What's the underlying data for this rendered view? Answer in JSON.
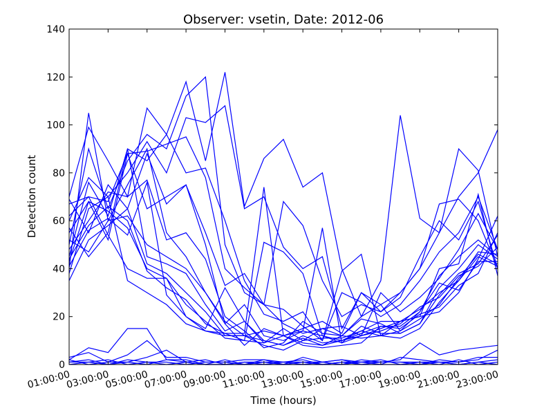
{
  "chart_data": {
    "type": "line",
    "title": "Observer: vsetin, Date: 2012-06",
    "xlabel": "Time (hours)",
    "ylabel": "Detection count",
    "xlim": [
      1,
      23
    ],
    "ylim": [
      0,
      140
    ],
    "grid": false,
    "legend": "none",
    "line_color": "#0000ff",
    "x": [
      1,
      2,
      3,
      4,
      5,
      6,
      7,
      8,
      9,
      10,
      11,
      12,
      13,
      14,
      15,
      16,
      17,
      18,
      19,
      20,
      21,
      22,
      23
    ],
    "x_tick_values": [
      1,
      3,
      5,
      7,
      9,
      11,
      13,
      15,
      17,
      19,
      21,
      23
    ],
    "x_tick_labels": [
      "01:00:00",
      "03:00:00",
      "05:00:00",
      "07:00:00",
      "09:00:00",
      "11:00:00",
      "13:00:00",
      "15:00:00",
      "17:00:00",
      "19:00:00",
      "21:00:00",
      "23:00:00"
    ],
    "y_tick_values": [
      0,
      20,
      40,
      60,
      80,
      100,
      120,
      140
    ],
    "y_tick_labels": [
      "0",
      "20",
      "40",
      "60",
      "80",
      "100",
      "120",
      "140"
    ],
    "series": [
      {
        "values": [
          40,
          105,
          60,
          75,
          90,
          55,
          45,
          30,
          18,
          12,
          8,
          6,
          10,
          15,
          12,
          20,
          25,
          30,
          40,
          55,
          70,
          80,
          98
        ]
      },
      {
        "values": [
          70,
          99,
          85,
          70,
          107,
          96,
          118,
          85,
          122,
          66,
          86,
          94,
          74,
          80,
          40,
          20,
          35,
          104,
          61,
          55,
          90,
          81,
          45
        ]
      },
      {
        "values": [
          50,
          90,
          65,
          85,
          96,
          90,
          112,
          120,
          50,
          30,
          25,
          68,
          58,
          35,
          20,
          25,
          22,
          28,
          45,
          60,
          52,
          68,
          40
        ]
      },
      {
        "values": [
          60,
          78,
          70,
          80,
          93,
          80,
          103,
          101,
          108,
          65,
          70,
          49,
          40,
          45,
          15,
          30,
          22,
          30,
          40,
          67,
          69,
          60,
          40
        ]
      },
      {
        "values": [
          45,
          76,
          62,
          90,
          85,
          96,
          80,
          82,
          60,
          35,
          21,
          18,
          22,
          10,
          39,
          46,
          12,
          18,
          20,
          40,
          42,
          71,
          37
        ]
      },
      {
        "values": [
          55,
          68,
          52,
          88,
          89,
          92,
          95,
          78,
          40,
          32,
          25,
          23,
          16,
          10,
          30,
          26,
          20,
          25,
          35,
          47,
          55,
          70,
          48
        ]
      },
      {
        "values": [
          62,
          70,
          68,
          88,
          65,
          70,
          75,
          55,
          33,
          38,
          25,
          17,
          13,
          15,
          16,
          12,
          30,
          22,
          28,
          36,
          48,
          63,
          48
        ]
      },
      {
        "values": [
          69,
          55,
          75,
          65,
          88,
          67,
          75,
          50,
          17,
          8,
          15,
          12,
          15,
          18,
          13,
          30,
          25,
          14,
          22,
          37,
          45,
          52,
          45
        ]
      },
      {
        "values": [
          48,
          60,
          72,
          70,
          77,
          52,
          55,
          44,
          20,
          14,
          7,
          9,
          18,
          13,
          12,
          19,
          17,
          13,
          17,
          32,
          40,
          50,
          44
        ]
      },
      {
        "values": [
          52,
          47,
          60,
          62,
          50,
          45,
          40,
          30,
          17,
          25,
          12,
          10,
          14,
          12,
          9,
          16,
          13,
          13,
          17,
          29,
          38,
          42,
          54
        ]
      },
      {
        "values": [
          57,
          45,
          55,
          90,
          45,
          42,
          38,
          25,
          14,
          18,
          10,
          8,
          12,
          9,
          10,
          14,
          12,
          11,
          15,
          26,
          35,
          45,
          41
        ]
      },
      {
        "values": [
          35,
          52,
          58,
          65,
          42,
          38,
          30,
          22,
          12,
          12,
          14,
          12,
          9,
          8,
          10,
          13,
          16,
          15,
          21,
          24,
          33,
          38,
          55
        ]
      },
      {
        "values": [
          43,
          68,
          64,
          57,
          40,
          36,
          25,
          18,
          11,
          10,
          9,
          15,
          10,
          11,
          11,
          14,
          18,
          18,
          20,
          22,
          30,
          44,
          62
        ]
      },
      {
        "values": [
          67,
          70,
          54,
          40,
          36,
          36,
          20,
          14,
          13,
          10,
          51,
          47,
          38,
          12,
          10,
          12,
          14,
          17,
          24,
          28,
          37,
          41,
          49
        ]
      },
      {
        "values": [
          38,
          65,
          70,
          35,
          30,
          25,
          17,
          14,
          12,
          12,
          10,
          8,
          11,
          8,
          12,
          11,
          12,
          14,
          19,
          25,
          36,
          46,
          42
        ]
      },
      {
        "values": [
          44,
          58,
          66,
          60,
          39,
          32,
          27,
          17,
          13,
          13,
          74,
          12,
          8,
          7,
          8,
          9,
          16,
          16,
          22,
          34,
          31,
          43,
          43
        ]
      },
      {
        "values": [
          41,
          56,
          61,
          54,
          76,
          29,
          20,
          15,
          32,
          18,
          9,
          12,
          14,
          57,
          9,
          12,
          15,
          18,
          23,
          30,
          35,
          47,
          46
        ]
      },
      {
        "values": [
          2,
          7,
          5,
          15,
          15,
          2,
          1,
          2,
          0,
          1,
          1,
          0,
          3,
          1,
          2,
          0,
          1,
          2,
          9,
          4,
          6,
          7,
          8
        ]
      },
      {
        "values": [
          3,
          5,
          1,
          4,
          10,
          3,
          3,
          1,
          1,
          2,
          2,
          1,
          2,
          0,
          1,
          1,
          1,
          1,
          1,
          1,
          1,
          2,
          6
        ]
      },
      {
        "values": [
          1,
          2,
          0,
          1,
          3,
          6,
          1,
          0,
          0,
          1,
          0,
          1,
          1,
          1,
          2,
          1,
          0,
          3,
          2,
          1,
          0,
          1,
          2
        ]
      },
      {
        "values": [
          0,
          1,
          2,
          0,
          1,
          1,
          0,
          1,
          1,
          0,
          2,
          0,
          0,
          1,
          0,
          2,
          1,
          1,
          0,
          2,
          1,
          3,
          3
        ]
      },
      {
        "values": [
          2,
          0,
          1,
          1,
          0,
          2,
          2,
          0,
          0,
          0,
          1,
          1,
          0,
          0,
          1,
          0,
          0,
          0,
          1,
          0,
          2,
          0,
          1
        ]
      },
      {
        "values": [
          1,
          1,
          0,
          2,
          1,
          0,
          1,
          0,
          2,
          0,
          0,
          0,
          1,
          0,
          0,
          1,
          2,
          0,
          0,
          1,
          0,
          1,
          0
        ]
      }
    ]
  }
}
